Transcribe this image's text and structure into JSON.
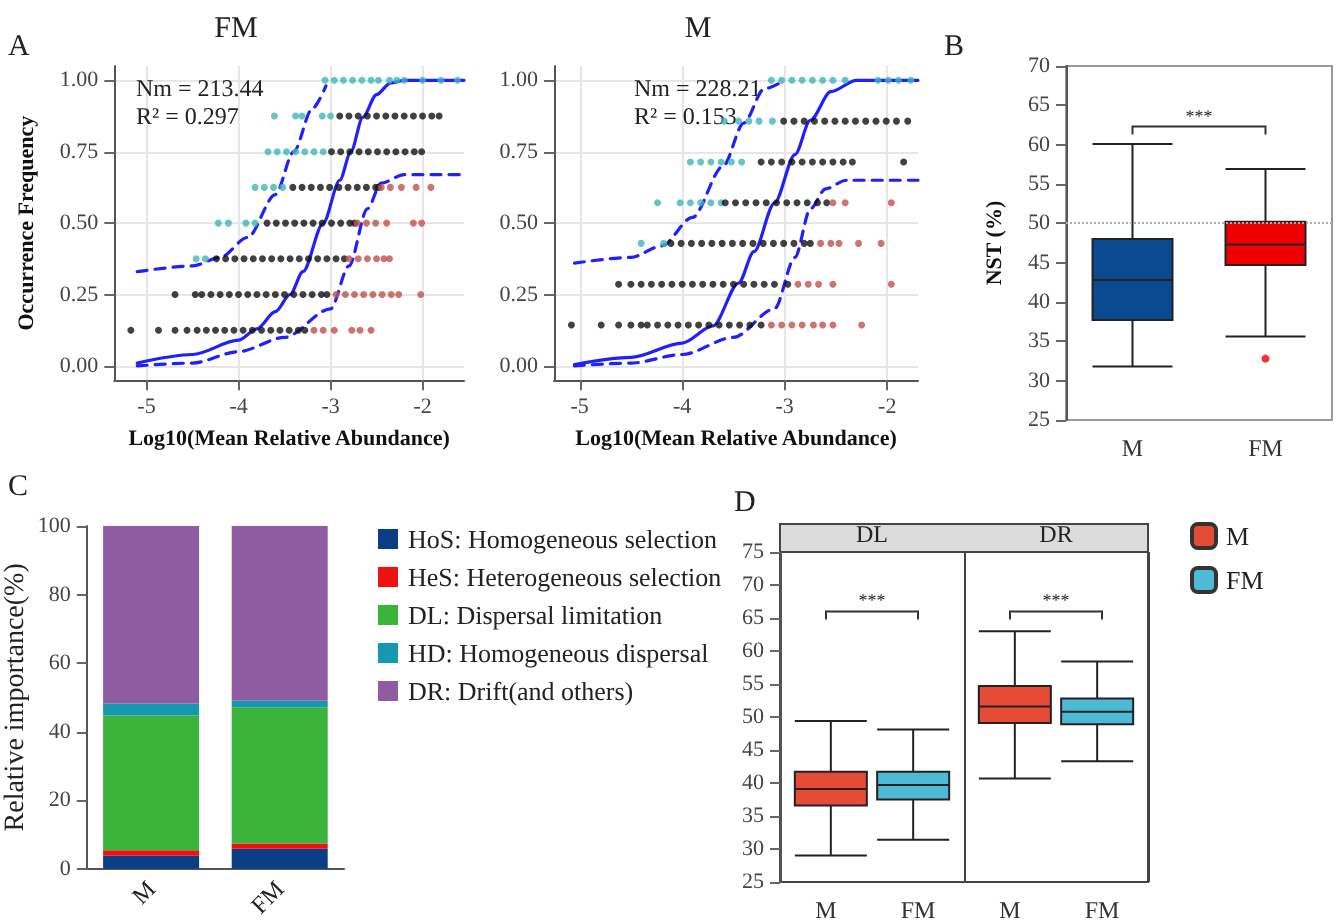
{
  "chart_data": [
    {
      "type": "scatter",
      "title": "FM",
      "xlabel": "Log10(Mean Relative Abundance)",
      "ylabel": "Occurrence Frequency",
      "annotations": [
        "A",
        "Nm = 213.44",
        "R² = 0.297"
      ],
      "xlim": [
        -5.35,
        -1.55
      ],
      "ylim": [
        -0.05,
        1.05
      ],
      "xticks": [
        -5,
        -4,
        -3,
        -2
      ],
      "yticks": [
        {
          "value": 0,
          "label": "0.00"
        },
        {
          "value": 0.25,
          "label": "0.25"
        },
        {
          "value": 0.5,
          "label": "0.50"
        },
        {
          "value": 0.75,
          "label": "0.75"
        },
        {
          "value": 1,
          "label": "1.00"
        }
      ],
      "grid": true,
      "series": [
        {
          "color": "#3fb5b5",
          "marker": "circle",
          "x": [
            -4.46,
            -4.36,
            -4.22,
            -4.11,
            -3.92,
            -3.82,
            -3.82,
            -3.72,
            -3.62,
            -3.52,
            -3.68,
            -3.58,
            -3.48,
            -3.38,
            -3.28,
            -3.18,
            -3.08,
            -3.61,
            -3.38,
            -3.31,
            -3.09,
            -3.0,
            -3.06,
            -2.96,
            -2.86,
            -2.76,
            -2.66,
            -2.56,
            -2.48,
            -2.36,
            -2.28,
            -2.2,
            -2.0,
            -1.8,
            -1.62
          ],
          "values": [
            0.375,
            0.375,
            0.5,
            0.5,
            0.5,
            0.5,
            0.625,
            0.625,
            0.625,
            0.625,
            0.75,
            0.75,
            0.75,
            0.75,
            0.75,
            0.75,
            0.75,
            0.875,
            0.875,
            0.875,
            0.875,
            0.875,
            1,
            1,
            1,
            1,
            1,
            1,
            1,
            1,
            1,
            1,
            1,
            1,
            1
          ]
        },
        {
          "color": "#111111",
          "marker": "circle",
          "x": [
            -5.17,
            -4.87,
            -4.69,
            -4.56,
            -4.45,
            -4.35,
            -4.25,
            -4.15,
            -4.05,
            -3.95,
            -3.85,
            -3.75,
            -3.65,
            -3.55,
            -3.45,
            -3.35,
            -3.28,
            -4.69,
            -4.47,
            -4.4,
            -4.3,
            -4.2,
            -4.1,
            -4.0,
            -3.9,
            -3.8,
            -3.7,
            -3.6,
            -3.5,
            -3.4,
            -3.3,
            -3.2,
            -3.1,
            -3.04,
            -4.24,
            -4.14,
            -4.04,
            -3.94,
            -3.84,
            -3.74,
            -3.64,
            -3.54,
            -3.44,
            -3.34,
            -3.24,
            -3.14,
            -3.04,
            -2.94,
            -2.85,
            -3.69,
            -3.59,
            -3.49,
            -3.39,
            -3.29,
            -3.19,
            -3.09,
            -2.99,
            -2.89,
            -2.79,
            -2.74,
            -3.41,
            -3.31,
            -3.21,
            -3.11,
            -3.01,
            -2.91,
            -2.81,
            -2.71,
            -2.61,
            -2.51,
            -2.48,
            -2.99,
            -2.89,
            -2.79,
            -2.69,
            -2.59,
            -2.49,
            -2.39,
            -2.29,
            -2.19,
            -2.09,
            -2.01,
            -2.9,
            -2.8,
            -2.7,
            -2.6,
            -2.5,
            -2.4,
            -2.3,
            -2.2,
            -2.1,
            -2.0,
            -1.9,
            -1.82
          ],
          "values": [
            0.125,
            0.125,
            0.125,
            0.125,
            0.125,
            0.125,
            0.125,
            0.125,
            0.125,
            0.125,
            0.125,
            0.125,
            0.125,
            0.125,
            0.125,
            0.125,
            0.125,
            0.25,
            0.25,
            0.25,
            0.25,
            0.25,
            0.25,
            0.25,
            0.25,
            0.25,
            0.25,
            0.25,
            0.25,
            0.25,
            0.25,
            0.25,
            0.25,
            0.25,
            0.375,
            0.375,
            0.375,
            0.375,
            0.375,
            0.375,
            0.375,
            0.375,
            0.375,
            0.375,
            0.375,
            0.375,
            0.375,
            0.375,
            0.375,
            0.5,
            0.5,
            0.5,
            0.5,
            0.5,
            0.5,
            0.5,
            0.5,
            0.5,
            0.5,
            0.5,
            0.625,
            0.625,
            0.625,
            0.625,
            0.625,
            0.625,
            0.625,
            0.625,
            0.625,
            0.625,
            0.625,
            0.75,
            0.75,
            0.75,
            0.75,
            0.75,
            0.75,
            0.75,
            0.75,
            0.75,
            0.75,
            0.75,
            0.875,
            0.875,
            0.875,
            0.875,
            0.875,
            0.875,
            0.875,
            0.875,
            0.875,
            0.875,
            0.875,
            0.875
          ]
        },
        {
          "color": "#c0504d",
          "marker": "circle",
          "x": [
            -3.18,
            -3.08,
            -2.96,
            -2.77,
            -2.68,
            -2.56,
            -2.94,
            -2.84,
            -2.74,
            -2.64,
            -2.54,
            -2.44,
            -2.34,
            -2.26,
            -2.02,
            -2.8,
            -2.7,
            -2.6,
            -2.5,
            -2.42,
            -2.36,
            -2.71,
            -2.61,
            -2.51,
            -2.39,
            -2.1,
            -2.01,
            -2.45,
            -2.35,
            -2.23,
            -2.07,
            -1.91
          ],
          "values": [
            0.125,
            0.125,
            0.125,
            0.125,
            0.125,
            0.125,
            0.25,
            0.25,
            0.25,
            0.25,
            0.25,
            0.25,
            0.25,
            0.25,
            0.25,
            0.375,
            0.375,
            0.375,
            0.375,
            0.375,
            0.375,
            0.5,
            0.5,
            0.5,
            0.5,
            0.5,
            0.5,
            0.625,
            0.625,
            0.625,
            0.625,
            0.625
          ]
        },
        {
          "type": "line",
          "color": "#1f1fff",
          "marker": "none",
          "line_style": "solid",
          "x": [
            -5.1,
            -4.5,
            -4.0,
            -3.8,
            -3.6,
            -3.44,
            -3.3,
            -3.08,
            -2.9,
            -2.78,
            -2.65,
            -2.5,
            -2.35,
            -2.2,
            -1.55
          ],
          "values": [
            0.01,
            0.04,
            0.09,
            0.13,
            0.19,
            0.25,
            0.33,
            0.5,
            0.65,
            0.75,
            0.87,
            0.95,
            0.99,
            1,
            1
          ]
        },
        {
          "type": "line",
          "color": "#1f1fff",
          "marker": "none",
          "line_style": "dashed",
          "x": [
            -5.1,
            -4.5,
            -4.2,
            -3.9,
            -3.6,
            -3.4,
            -3.2,
            -3.05
          ],
          "values": [
            0.33,
            0.35,
            0.38,
            0.45,
            0.6,
            0.75,
            0.9,
            0.98
          ]
        },
        {
          "type": "line",
          "color": "#1f1fff",
          "marker": "none",
          "line_style": "dashed",
          "x": [
            -5.1,
            -4.5,
            -4.0,
            -3.5,
            -3.0,
            -2.8,
            -2.6,
            -2.45,
            -2.2,
            -1.55
          ],
          "values": [
            0.0,
            0.01,
            0.05,
            0.1,
            0.2,
            0.35,
            0.55,
            0.64,
            0.67,
            0.67
          ]
        }
      ]
    },
    {
      "type": "scatter",
      "title": "M",
      "xlabel": "Log10(Mean Relative Abundance)",
      "annotations": [
        "Nm = 228.21",
        "R² = 0.153"
      ],
      "xlim": [
        -5.25,
        -1.7
      ],
      "ylim": [
        -0.05,
        1.05
      ],
      "xticks": [
        -5,
        -4,
        -3,
        -2
      ],
      "yticks": [
        {
          "value": 0,
          "label": "0.00"
        },
        {
          "value": 0.25,
          "label": "0.25"
        },
        {
          "value": 0.5,
          "label": "0.50"
        },
        {
          "value": 0.75,
          "label": "0.75"
        },
        {
          "value": 1,
          "label": "1.00"
        }
      ],
      "grid": true,
      "series": [
        {
          "color": "#3fb5b5",
          "marker": "circle",
          "x": [
            -4.4,
            -4.18,
            -4.24,
            -4.02,
            -3.92,
            -3.82,
            -3.72,
            -3.62,
            -3.92,
            -3.82,
            -3.72,
            -3.62,
            -3.52,
            -3.42,
            -3.59,
            -3.45,
            -3.35,
            -3.25,
            -3.12,
            -3.13,
            -3.03,
            -2.93,
            -2.83,
            -2.73,
            -2.63,
            -2.53,
            -2.41,
            -2.09,
            -1.99,
            -1.89,
            -1.77
          ],
          "values": [
            0.429,
            0.429,
            0.571,
            0.571,
            0.571,
            0.571,
            0.571,
            0.571,
            0.714,
            0.714,
            0.714,
            0.714,
            0.714,
            0.714,
            0.857,
            0.857,
            0.857,
            0.857,
            0.857,
            1,
            1,
            1,
            1,
            1,
            1,
            1,
            1,
            1,
            1,
            1,
            1
          ]
        },
        {
          "color": "#111111",
          "marker": "circle",
          "x": [
            -5.08,
            -4.79,
            -4.62,
            -4.5,
            -4.4,
            -4.34,
            -4.24,
            -4.14,
            -4.04,
            -3.94,
            -3.84,
            -3.74,
            -3.64,
            -3.54,
            -3.44,
            -3.34,
            -3.23,
            -4.62,
            -4.5,
            -4.4,
            -4.3,
            -4.2,
            -4.1,
            -4.0,
            -3.9,
            -3.8,
            -3.7,
            -3.6,
            -3.5,
            -3.4,
            -3.3,
            -3.2,
            -3.1,
            -2.97,
            -4.11,
            -4.01,
            -3.91,
            -3.81,
            -3.71,
            -3.61,
            -3.51,
            -3.41,
            -3.31,
            -3.21,
            -3.11,
            -3.01,
            -2.91,
            -2.81,
            -2.75,
            -3.58,
            -3.48,
            -3.38,
            -3.28,
            -3.18,
            -3.08,
            -2.98,
            -2.88,
            -2.78,
            -2.68,
            -2.59,
            -3.23,
            -3.13,
            -3.03,
            -2.93,
            -2.83,
            -2.73,
            -2.63,
            -2.53,
            -2.43,
            -2.34,
            -1.84,
            -3.01,
            -2.91,
            -2.81,
            -2.71,
            -2.61,
            -2.51,
            -2.41,
            -2.31,
            -2.21,
            -2.11,
            -2.01,
            -1.91,
            -1.8
          ],
          "values": [
            0.143,
            0.143,
            0.143,
            0.143,
            0.143,
            0.143,
            0.143,
            0.143,
            0.143,
            0.143,
            0.143,
            0.143,
            0.143,
            0.143,
            0.143,
            0.143,
            0.143,
            0.286,
            0.286,
            0.286,
            0.286,
            0.286,
            0.286,
            0.286,
            0.286,
            0.286,
            0.286,
            0.286,
            0.286,
            0.286,
            0.286,
            0.286,
            0.286,
            0.286,
            0.429,
            0.429,
            0.429,
            0.429,
            0.429,
            0.429,
            0.429,
            0.429,
            0.429,
            0.429,
            0.429,
            0.429,
            0.429,
            0.429,
            0.429,
            0.571,
            0.571,
            0.571,
            0.571,
            0.571,
            0.571,
            0.571,
            0.571,
            0.571,
            0.571,
            0.571,
            0.714,
            0.714,
            0.714,
            0.714,
            0.714,
            0.714,
            0.714,
            0.714,
            0.714,
            0.714,
            0.714,
            0.857,
            0.857,
            0.857,
            0.857,
            0.857,
            0.857,
            0.857,
            0.857,
            0.857,
            0.857,
            0.857,
            0.857,
            0.857
          ]
        },
        {
          "color": "#c0504d",
          "marker": "circle",
          "x": [
            -3.13,
            -3.03,
            -2.93,
            -2.83,
            -2.72,
            -2.63,
            -2.53,
            -2.25,
            -2.87,
            -2.77,
            -2.67,
            -2.53,
            -1.96,
            -2.65,
            -2.55,
            -2.47,
            -2.28,
            -2.06,
            -2.53,
            -2.41,
            -1.96
          ],
          "values": [
            0.143,
            0.143,
            0.143,
            0.143,
            0.143,
            0.143,
            0.143,
            0.143,
            0.286,
            0.286,
            0.286,
            0.286,
            0.286,
            0.429,
            0.429,
            0.429,
            0.429,
            0.429,
            0.571,
            0.571,
            0.571
          ]
        },
        {
          "type": "line",
          "color": "#1f1fff",
          "marker": "none",
          "line_style": "solid",
          "x": [
            -5.05,
            -4.5,
            -4.0,
            -3.7,
            -3.45,
            -3.3,
            -3.1,
            -2.9,
            -2.75,
            -2.55,
            -2.3,
            -1.7
          ],
          "values": [
            0.005,
            0.03,
            0.08,
            0.14,
            0.29,
            0.4,
            0.57,
            0.74,
            0.86,
            0.96,
            1,
            1
          ]
        },
        {
          "type": "line",
          "color": "#1f1fff",
          "marker": "none",
          "line_style": "dashed",
          "x": [
            -5.05,
            -4.5,
            -4.2,
            -3.9,
            -3.6,
            -3.4,
            -3.2,
            -3.0
          ],
          "values": [
            0.36,
            0.38,
            0.42,
            0.52,
            0.7,
            0.85,
            0.97,
            1
          ]
        },
        {
          "type": "line",
          "color": "#1f1fff",
          "marker": "none",
          "line_style": "dashed",
          "x": [
            -5.05,
            -4.5,
            -4.0,
            -3.5,
            -3.1,
            -2.9,
            -2.75,
            -2.6,
            -2.4,
            -1.7
          ],
          "values": [
            0.0,
            0.01,
            0.04,
            0.1,
            0.2,
            0.38,
            0.55,
            0.62,
            0.65,
            0.65
          ]
        }
      ]
    },
    {
      "type": "box",
      "ylabel": "NST (%)",
      "annotations": [
        "B",
        "***"
      ],
      "categories": [
        "M",
        "FM"
      ],
      "colors": [
        "#0a4a90",
        "#ee0000"
      ],
      "boxes": [
        {
          "low": 31.8,
          "q1": 37.7,
          "median": 42.8,
          "q3": 48.0,
          "high": 60.1
        },
        {
          "low": 35.6,
          "q1": 44.7,
          "median": 47.3,
          "q3": 50.2,
          "high": 56.9,
          "outliers": [
            32.8
          ]
        }
      ],
      "ylim": [
        25,
        70
      ],
      "yticks": [
        25,
        30,
        35,
        40,
        45,
        50,
        55,
        60,
        65,
        70
      ],
      "grid": false,
      "ref_lines": [
        {
          "axis": "y",
          "value": 50,
          "color": "#aaaaaa",
          "line_style": "dotted"
        }
      ]
    },
    {
      "type": "bar",
      "stacked": true,
      "ylabel": "Relative importance(%)",
      "annotations": [
        "C"
      ],
      "categories": [
        "M",
        "FM"
      ],
      "ylim": [
        0,
        100
      ],
      "yticks": [
        0,
        20,
        40,
        60,
        80,
        100
      ],
      "grid": false,
      "legend": "right",
      "series": [
        {
          "name": "HoS: Homogeneous selection",
          "color": "#0a3f87",
          "values": [
            3.8,
            5.8
          ]
        },
        {
          "name": "HeS: Heterogeneous selection",
          "color": "#ee1111",
          "values": [
            1.6,
            1.6
          ]
        },
        {
          "name": "DL: Dispersal limitation",
          "color": "#3cb43c",
          "values": [
            39.3,
            39.7
          ]
        },
        {
          "name": "HD: Homogeneous dispersal",
          "color": "#1598b0",
          "values": [
            3.5,
            1.9
          ]
        },
        {
          "name": "DR: Drift(and others)",
          "color": "#8e5ca0",
          "values": [
            51.8,
            51.0
          ]
        }
      ]
    },
    {
      "type": "box",
      "annotations": [
        "D",
        "***",
        "***"
      ],
      "categories": [
        "DL",
        "DR"
      ],
      "ylim": [
        25,
        75
      ],
      "yticks": [
        25,
        30,
        35,
        40,
        45,
        50,
        55,
        60,
        65,
        70,
        75
      ],
      "grid": false,
      "legend": "top right",
      "series": [
        {
          "name": "M",
          "color": "#e64b35",
          "boxes": [
            {
              "low": 29.0,
              "q1": 36.6,
              "median": 39.1,
              "q3": 41.7,
              "high": 49.4
            },
            {
              "low": 40.7,
              "q1": 49.1,
              "median": 51.6,
              "q3": 54.7,
              "high": 63.0
            }
          ]
        },
        {
          "name": "FM",
          "color": "#4dbbd5",
          "boxes": [
            {
              "low": 31.4,
              "q1": 37.5,
              "median": 39.7,
              "q3": 41.7,
              "high": 48.1
            },
            {
              "low": 43.3,
              "q1": 48.9,
              "median": 50.8,
              "q3": 52.8,
              "high": 58.4
            }
          ]
        }
      ]
    }
  ]
}
